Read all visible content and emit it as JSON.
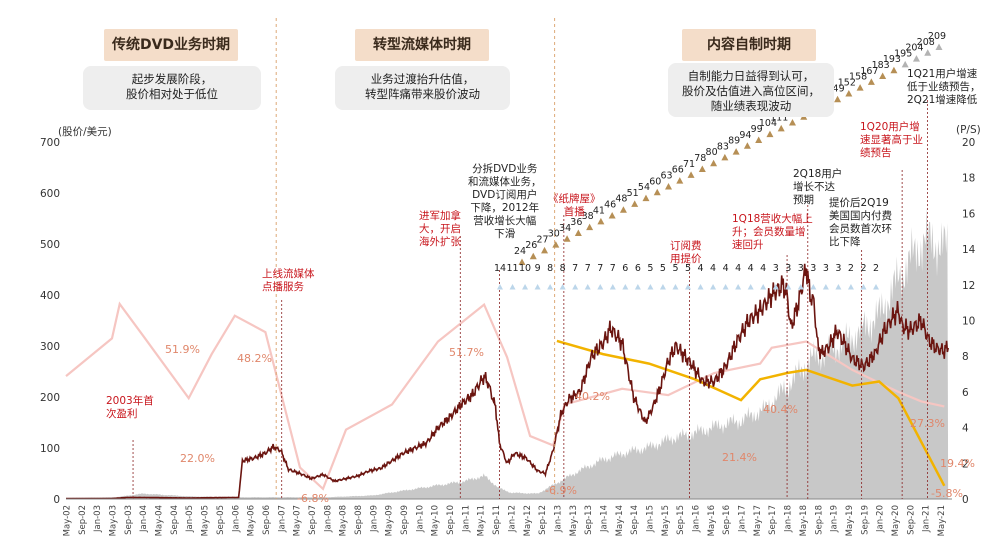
{
  "phases": [
    {
      "title": "传统DVD业务时期",
      "desc": [
        "起步发展阶段，",
        "股价相对处于低位"
      ]
    },
    {
      "title": "转型流媒体时期",
      "desc": [
        "业务过渡抬升估值，",
        "转型阵痛带来股价波动"
      ]
    },
    {
      "title": "内容自制时期",
      "desc": [
        "自制能力日益得到认可，",
        "股价及估值进入高位区间，",
        "随业绩表现波动"
      ]
    }
  ],
  "annotations": [
    {
      "key": "first_profit",
      "text": [
        "2003年首",
        "次盈利"
      ],
      "color": "red"
    },
    {
      "key": "streaming_launch",
      "text": [
        "上线流媒体",
        "点播服务"
      ],
      "color": "red"
    },
    {
      "key": "intl_expansion",
      "text": [
        "进军加拿",
        "大，开启",
        "海外扩张"
      ],
      "color": "red"
    },
    {
      "key": "split_2011",
      "text": [
        "分拆DVD业务",
        "和流媒体业务，",
        "DVD订阅用户",
        "下降，2012年",
        "营收增长大幅",
        "下滑"
      ],
      "color": "black"
    },
    {
      "key": "house_of_cards",
      "text": [
        "《纸牌屋》",
        "首播"
      ],
      "color": "red"
    },
    {
      "key": "price_hike",
      "text": [
        "订阅费",
        "用提价"
      ],
      "color": "red"
    },
    {
      "key": "q1_2018",
      "text": [
        "1Q18营收大幅上",
        "升；会员数量增",
        "速回升"
      ],
      "color": "red"
    },
    {
      "key": "q2_2018",
      "text": [
        "2Q18用户",
        "增长不达",
        "预期"
      ],
      "color": "black"
    },
    {
      "key": "q2_2019",
      "text": [
        "提价后2Q19",
        "美国国内付费",
        "会员数首次环",
        "比下降"
      ],
      "color": "black"
    },
    {
      "key": "q1_2020",
      "text": [
        "1Q20用户增",
        "速显著高于业",
        "绩预告"
      ],
      "color": "red"
    },
    {
      "key": "q1_2021",
      "text": [
        "1Q21用户增速",
        "低于业绩预告，",
        "2Q21增速降低"
      ],
      "color": "black"
    }
  ],
  "axis_titles": {
    "left": "(股价/美元)",
    "right": "(P/S)"
  },
  "colors": {
    "price": "#6b1510",
    "ps": "#c8c8c8",
    "growth_pink": "#f6c6c2",
    "growth_orange": "#f2b300",
    "phase_bg": "#f4ddc9",
    "red_text": "#c8161d",
    "pct_label": "#e0876b",
    "tri_gold": "#b68f55",
    "tri_gray": "#b3b3b3",
    "tri_blue": "#bcd6ea"
  },
  "chart_data": {
    "type": "line",
    "x_ticks": [
      "May-02",
      "Sep-02",
      "Jan-03",
      "May-03",
      "Sep-03",
      "Jan-04",
      "May-04",
      "Sep-04",
      "Jan-05",
      "May-05",
      "Sep-05",
      "Jan-06",
      "May-06",
      "Sep-06",
      "Jan-07",
      "May-07",
      "Sep-07",
      "Jan-08",
      "May-08",
      "Sep-08",
      "Jan-09",
      "May-09",
      "Sep-09",
      "Jan-10",
      "May-10",
      "Sep-10",
      "Jan-11",
      "May-11",
      "Sep-11",
      "Jan-12",
      "May-12",
      "Sep-12",
      "Jan-13",
      "May-13",
      "Sep-13",
      "Jan-14",
      "May-14",
      "Sep-14",
      "Jan-15",
      "May-15",
      "Sep-15",
      "Jan-16",
      "May-16",
      "Sep-16",
      "Jan-17",
      "May-17",
      "Sep-17",
      "Jan-18",
      "May-18",
      "Sep-18",
      "Jan-19",
      "May-19",
      "Sep-19",
      "Jan-20",
      "May-20",
      "Sep-20",
      "Jan-21",
      "May-21"
    ],
    "y_left": {
      "label": "(股价/美元)",
      "min": 0,
      "max": 700,
      "ticks": [
        0,
        100,
        200,
        300,
        400,
        500,
        600,
        700
      ]
    },
    "y_right": {
      "label": "(P/S)",
      "min": 0,
      "max": 20,
      "ticks": [
        0,
        2,
        4,
        6,
        8,
        10,
        12,
        14,
        16,
        18,
        20
      ]
    },
    "series": [
      {
        "axis": "left",
        "points": [
          [
            "2002-05",
            0.8
          ],
          [
            "2003-05",
            1
          ],
          [
            "2003-09",
            3
          ],
          [
            "2004-01",
            3
          ],
          [
            "2005-01",
            2
          ],
          [
            "2005-12",
            3
          ],
          [
            "2006-02",
            3
          ],
          [
            "2006-03",
            75
          ],
          [
            "2006-06",
            80
          ],
          [
            "2006-09",
            90
          ],
          [
            "2006-11",
            102
          ],
          [
            "2007-01",
            95
          ],
          [
            "2007-03",
            58
          ],
          [
            "2007-06",
            50
          ],
          [
            "2007-09",
            40
          ],
          [
            "2007-12",
            48
          ],
          [
            "2008-03",
            35
          ],
          [
            "2008-06",
            40
          ],
          [
            "2008-09",
            45
          ],
          [
            "2008-12",
            55
          ],
          [
            "2009-03",
            60
          ],
          [
            "2009-06",
            75
          ],
          [
            "2009-09",
            90
          ],
          [
            "2009-12",
            100
          ],
          [
            "2010-03",
            110
          ],
          [
            "2010-06",
            140
          ],
          [
            "2010-09",
            160
          ],
          [
            "2010-12",
            185
          ],
          [
            "2011-03",
            205
          ],
          [
            "2011-06",
            240
          ],
          [
            "2011-07",
            228
          ],
          [
            "2011-09",
            180
          ],
          [
            "2011-10",
            110
          ],
          [
            "2011-12",
            70
          ],
          [
            "2012-02",
            90
          ],
          [
            "2012-05",
            80
          ],
          [
            "2012-08",
            55
          ],
          [
            "2012-10",
            50
          ],
          [
            "2012-12",
            95
          ],
          [
            "2013-02",
            165
          ],
          [
            "2013-04",
            195
          ],
          [
            "2013-07",
            210
          ],
          [
            "2013-10",
            280
          ],
          [
            "2014-01",
            305
          ],
          [
            "2014-03",
            335
          ],
          [
            "2014-06",
            305
          ],
          [
            "2014-09",
            200
          ],
          [
            "2014-12",
            150
          ],
          [
            "2015-02",
            180
          ],
          [
            "2015-04",
            220
          ],
          [
            "2015-06",
            270
          ],
          [
            "2015-08",
            300
          ],
          [
            "2015-12",
            265
          ],
          [
            "2016-03",
            230
          ],
          [
            "2016-06",
            230
          ],
          [
            "2016-09",
            260
          ],
          [
            "2016-12",
            310
          ],
          [
            "2017-03",
            350
          ],
          [
            "2017-06",
            370
          ],
          [
            "2017-09",
            400
          ],
          [
            "2017-12",
            420
          ],
          [
            "2018-01",
            400
          ],
          [
            "2018-02",
            335
          ],
          [
            "2018-04",
            385
          ],
          [
            "2018-05",
            420
          ],
          [
            "2018-06",
            455
          ],
          [
            "2018-07",
            400
          ],
          [
            "2018-08",
            385
          ],
          [
            "2018-09",
            300
          ],
          [
            "2018-10",
            285
          ],
          [
            "2018-12",
            300
          ],
          [
            "2019-02",
            330
          ],
          [
            "2019-04",
            305
          ],
          [
            "2019-06",
            275
          ],
          [
            "2019-09",
            260
          ],
          [
            "2019-12",
            285
          ],
          [
            "2020-02",
            325
          ],
          [
            "2020-04",
            350
          ],
          [
            "2020-06",
            370
          ],
          [
            "2020-07",
            340
          ],
          [
            "2020-09",
            330
          ],
          [
            "2020-12",
            350
          ],
          [
            "2021-02",
            310
          ],
          [
            "2021-04",
            295
          ],
          [
            "2021-06",
            290
          ],
          [
            "2021-07",
            300
          ]
        ]
      },
      {
        "axis": "right",
        "points": [
          [
            "2002-05",
            0.05
          ],
          [
            "2003-06",
            0.1
          ],
          [
            "2004-01",
            0.3
          ],
          [
            "2005-01",
            0.15
          ],
          [
            "2006-01",
            0.1
          ],
          [
            "2007-01",
            0.1
          ],
          [
            "2008-01",
            0.1
          ],
          [
            "2009-01",
            0.2
          ],
          [
            "2010-01",
            0.6
          ],
          [
            "2011-01",
            1.0
          ],
          [
            "2011-06",
            1.3
          ],
          [
            "2011-10",
            0.6
          ],
          [
            "2012-01",
            0.35
          ],
          [
            "2012-08",
            0.3
          ],
          [
            "2013-01",
            0.9
          ],
          [
            "2013-07",
            1.6
          ],
          [
            "2014-01",
            2.2
          ],
          [
            "2014-07",
            2.6
          ],
          [
            "2015-01",
            2.9
          ],
          [
            "2015-07",
            3.4
          ],
          [
            "2016-01",
            3.7
          ],
          [
            "2016-07",
            4.1
          ],
          [
            "2017-01",
            4.4
          ],
          [
            "2017-07",
            5.0
          ],
          [
            "2018-01",
            6.3
          ],
          [
            "2018-07",
            7.8
          ],
          [
            "2019-01",
            8.4
          ],
          [
            "2019-07",
            9.2
          ],
          [
            "2020-01",
            10.3
          ],
          [
            "2020-07",
            12.7
          ],
          [
            "2021-01",
            14.6
          ],
          [
            "2021-07",
            14.0
          ]
        ]
      },
      {
        "axis": "growth",
        "points": [
          [
            "2002-05",
            29
          ],
          [
            "2003-05",
            41
          ],
          [
            "2003-07",
            51.9
          ],
          [
            "2004-01",
            42
          ],
          [
            "2005-01",
            22.0
          ],
          [
            "2005-07",
            36
          ],
          [
            "2006-01",
            48.2
          ],
          [
            "2006-09",
            43
          ],
          [
            "2007-06",
            0
          ],
          [
            "2007-12",
            -6.8
          ],
          [
            "2008-06",
            12
          ],
          [
            "2009-06",
            20
          ],
          [
            "2010-06",
            40
          ],
          [
            "2011-06",
            51.7
          ],
          [
            "2011-12",
            35
          ],
          [
            "2012-06",
            10
          ],
          [
            "2012-12",
            7
          ],
          [
            "2013-03",
            20
          ],
          [
            "2013-09",
            22
          ],
          [
            "2014-06",
            25
          ],
          [
            "2015-06",
            23
          ],
          [
            "2016-06",
            30
          ],
          [
            "2017-06",
            33
          ],
          [
            "2017-09",
            38
          ],
          [
            "2018-06",
            40
          ],
          [
            "2019-06",
            31
          ],
          [
            "2020-06",
            24
          ],
          [
            "2020-12",
            21
          ],
          [
            "2021-06",
            19.4
          ]
        ]
      },
      {
        "axis": "growth",
        "points": [
          [
            "2013-01",
            40.2
          ],
          [
            "2014-01",
            36
          ],
          [
            "2015-01",
            33
          ],
          [
            "2016-01",
            28
          ],
          [
            "2017-01",
            21.4
          ],
          [
            "2017-06",
            28
          ],
          [
            "2018-01",
            30
          ],
          [
            "2018-06",
            31
          ],
          [
            "2019-06",
            26
          ],
          [
            "2020-01",
            27.3
          ],
          [
            "2020-06",
            22
          ],
          [
            "2021-06",
            -5.8
          ]
        ]
      }
    ],
    "growth_labels": [
      "51.9%",
      "48.2%",
      "22.0%",
      "-6.8%",
      "51.7%",
      "-6.9%",
      "40.2%",
      "21.4%",
      "40.4%",
      "27.3%",
      "19.4%",
      "-5.8%"
    ],
    "triangles": {
      "gold": [
        "24",
        "26",
        "27",
        "30",
        "34",
        "36",
        "38",
        "41",
        "46",
        "48",
        "51",
        "54",
        "60",
        "63",
        "66",
        "71",
        "78",
        "80",
        "83",
        "89",
        "94",
        "99",
        "104",
        "111",
        "119",
        "124",
        "130",
        "139",
        "149",
        "152",
        "158",
        "167",
        "183",
        "193",
        "195",
        "204",
        "208",
        "209"
      ],
      "gray": [
        "14",
        "11",
        "10",
        "9",
        "8",
        "8",
        "7",
        "7",
        "7",
        "7",
        "6",
        "6",
        "5",
        "5",
        "5",
        "5",
        "4",
        "4",
        "4",
        "4",
        "4",
        "4",
        "3",
        "3",
        "3",
        "3",
        "3",
        "3",
        "2",
        "2",
        "2"
      ]
    }
  }
}
